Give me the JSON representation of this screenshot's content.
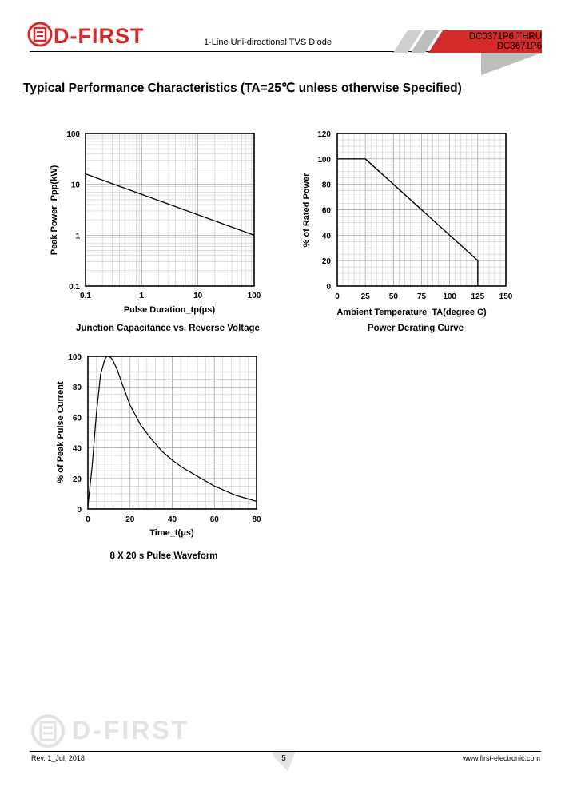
{
  "header": {
    "logo_text": "D-FIRST",
    "subtitle": "1-Line Uni-directional TVS Diode",
    "part_number_line1": "DC0371P6 THRU",
    "part_number_line2": "DC3671P6",
    "accent_color": "#d42a2a"
  },
  "section_title": "Typical Performance Characteristics (TA=25℃ unless otherwise Specified)",
  "figures": {
    "peak_power": {
      "caption": "Junction Capacitance vs. Reverse Voltage",
      "xlabel": "Pulse Duration_tp(μs)",
      "ylabel": "Peak Power_Ppp(kW)",
      "x_ticks": [
        "0.1",
        "1",
        "10",
        "100"
      ],
      "y_ticks": [
        "100",
        "10",
        "1",
        "0.1"
      ]
    },
    "derating": {
      "caption": "Power Derating Curve",
      "xlabel": "Ambient Temperature_TA(degree C)",
      "ylabel": "% of Rated Power",
      "x_ticks": [
        "0",
        "25",
        "50",
        "75",
        "100",
        "125",
        "150"
      ],
      "y_ticks": [
        "120",
        "100",
        "80",
        "60",
        "40",
        "20",
        "0"
      ]
    },
    "waveform": {
      "caption": "8 X 20 s Pulse Waveform",
      "xlabel": "Time_t(μs)",
      "ylabel": "% of Peak Pulse Current",
      "x_ticks": [
        "0",
        "20",
        "40",
        "60",
        "80"
      ],
      "y_ticks": [
        "100",
        "80",
        "60",
        "40",
        "20",
        "0"
      ]
    }
  },
  "chart_data": [
    {
      "type": "line",
      "xlabel": "Pulse Duration_tp(μs)",
      "ylabel": "Peak Power_Ppp(kW)",
      "xscale": "log",
      "yscale": "log",
      "xlim": [
        0.1,
        100
      ],
      "ylim": [
        0.1,
        100
      ],
      "grid": true,
      "x": [
        0.1,
        100
      ],
      "y": [
        16,
        1
      ]
    },
    {
      "type": "line",
      "xlabel": "Ambient Temperature_TA(degree C)",
      "ylabel": "% of Rated Power",
      "xlim": [
        0,
        150
      ],
      "ylim": [
        0,
        120
      ],
      "grid": true,
      "x": [
        0,
        25,
        125,
        125
      ],
      "y": [
        100,
        100,
        20,
        0
      ]
    },
    {
      "type": "line",
      "xlabel": "Time_t(μs)",
      "ylabel": "% of Peak Pulse Current",
      "xlim": [
        0,
        80
      ],
      "ylim": [
        0,
        100
      ],
      "grid": true,
      "x": [
        0,
        2,
        4,
        6,
        8,
        9,
        10,
        11,
        12,
        14,
        16,
        20,
        25,
        30,
        35,
        40,
        45,
        50,
        55,
        60,
        65,
        70,
        75,
        80
      ],
      "y": [
        2,
        28,
        62,
        88,
        98,
        100,
        100,
        99,
        97,
        91,
        83,
        68,
        55,
        46,
        38,
        32,
        27,
        23,
        19,
        15,
        12,
        9,
        7,
        5
      ]
    }
  ],
  "footer": {
    "left": "Rev. 1_Jul, 2018",
    "page": "5",
    "right": "www.first-electronic.com",
    "watermark": "D-FIRST"
  }
}
